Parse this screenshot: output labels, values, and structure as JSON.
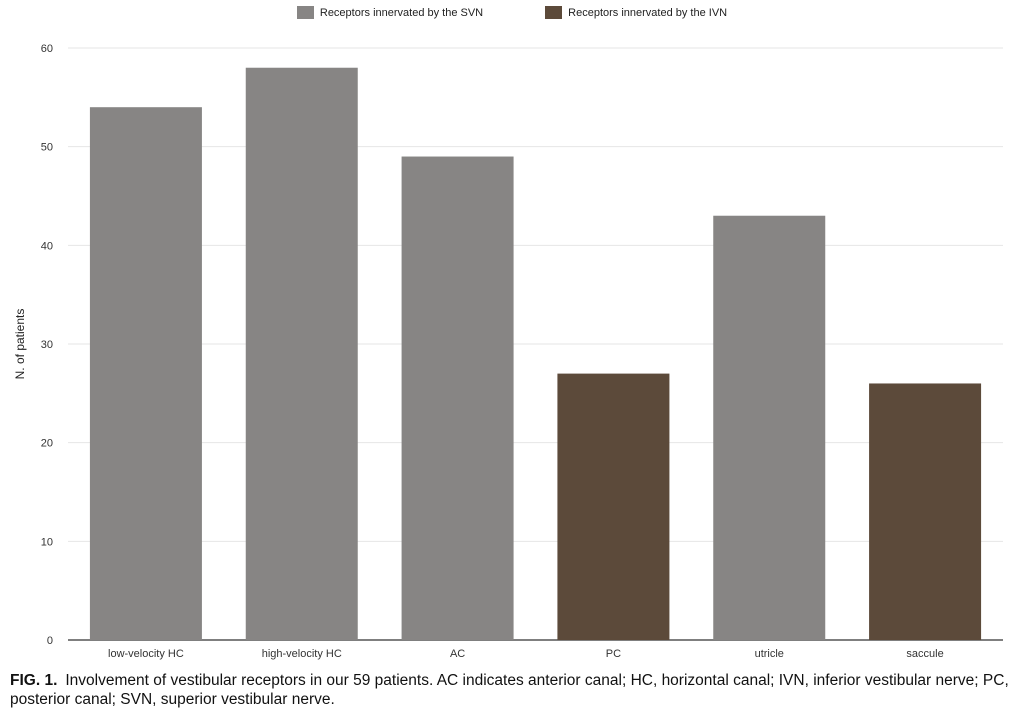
{
  "chart_data": {
    "type": "bar",
    "categories": [
      "low-velocity HC",
      "high-velocity HC",
      "AC",
      "PC",
      "utricle",
      "saccule"
    ],
    "values": [
      54,
      58,
      49,
      27,
      43,
      26
    ],
    "bar_groups": [
      "SVN",
      "SVN",
      "SVN",
      "IVN",
      "SVN",
      "IVN"
    ],
    "ylabel": "N. of patients",
    "xlabel": "",
    "ylim": [
      0,
      60
    ],
    "yticks": [
      0,
      10,
      20,
      30,
      40,
      50,
      60
    ],
    "grid": true,
    "legend_position": "top-center",
    "legend": [
      {
        "key": "SVN",
        "label": "Receptors innervated by the SVN",
        "color": "#878584"
      },
      {
        "key": "IVN",
        "label": "Receptors innervated by the IVN",
        "color": "#5c4a3a"
      }
    ]
  },
  "caption": {
    "label": "FIG. 1.",
    "text": "Involvement of vestibular receptors in our 59 patients. AC indicates anterior canal; HC, horizontal canal; IVN, inferior vestibular nerve; PC, posterior canal; SVN, superior vestibular nerve."
  }
}
